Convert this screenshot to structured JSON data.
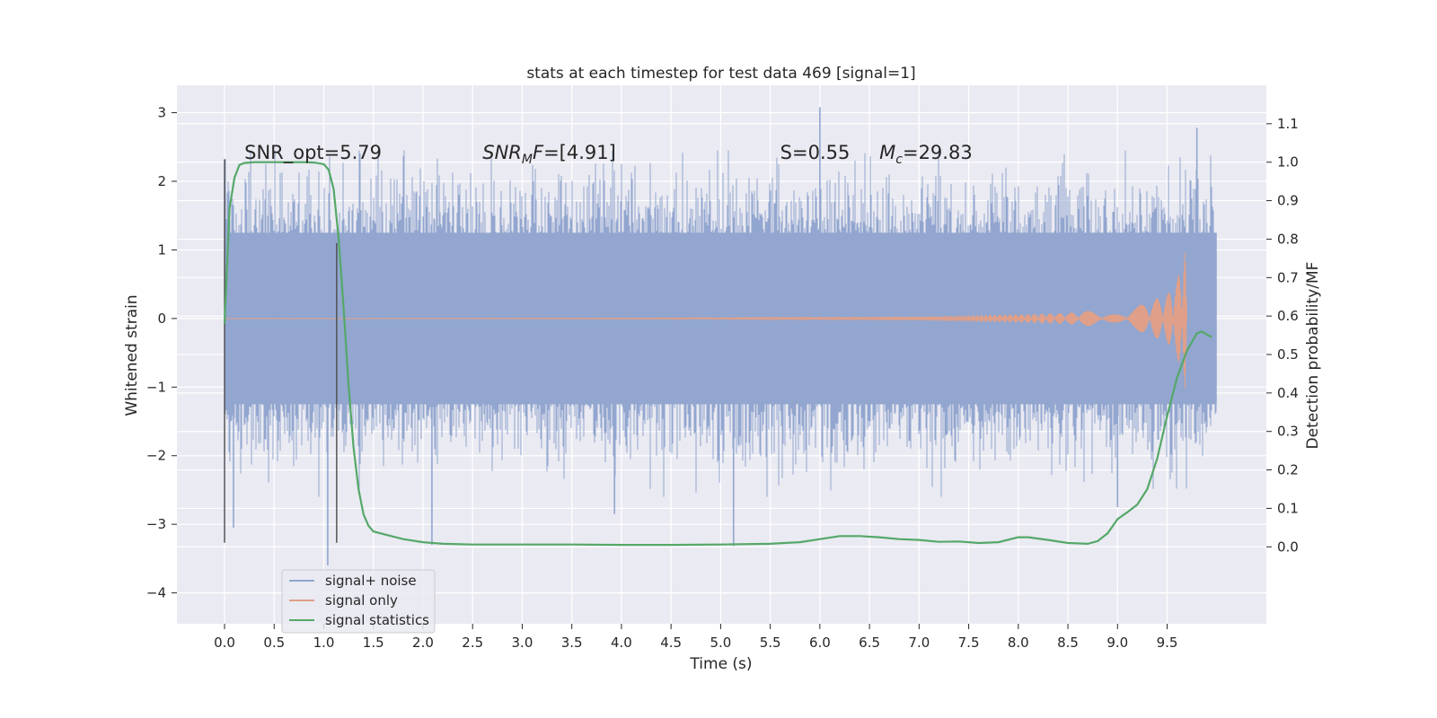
{
  "chart_data": {
    "type": "line",
    "title": "stats at each timestep for test data 469 [signal=1]",
    "xlabel": "Time (s)",
    "ylabel_left": "Whitened strain",
    "ylabel_right": "Detection probability/MF",
    "xlim": [
      -0.48,
      10.5
    ],
    "ylim_left": [
      -4.45,
      3.4
    ],
    "ylim_right": [
      -0.2,
      1.2
    ],
    "x_ticks": [
      0.0,
      0.5,
      1.0,
      1.5,
      2.0,
      2.5,
      3.0,
      3.5,
      4.0,
      4.5,
      5.0,
      5.5,
      6.0,
      6.5,
      7.0,
      7.5,
      8.0,
      8.5,
      9.0,
      9.5
    ],
    "x_tick_labels": [
      "0.0",
      "0.5",
      "1.0",
      "1.5",
      "2.0",
      "2.5",
      "3.0",
      "3.5",
      "4.0",
      "4.5",
      "5.0",
      "5.5",
      "6.0",
      "6.5",
      "7.0",
      "7.5",
      "8.0",
      "8.5",
      "9.0",
      "9.5"
    ],
    "y_ticks_left": [
      3,
      2,
      1,
      0,
      -1,
      -2,
      -3,
      -4
    ],
    "y_tick_labels_left": [
      "3",
      "2",
      "1",
      "0",
      "−1",
      "−2",
      "−3",
      "−4"
    ],
    "y_ticks_right": [
      1.1,
      1.0,
      0.9,
      0.8,
      0.7,
      0.6,
      0.5,
      0.4,
      0.3,
      0.2,
      0.1,
      0.0
    ],
    "y_tick_labels_right": [
      "1.1",
      "1.0",
      "0.9",
      "0.8",
      "0.7",
      "0.6",
      "0.5",
      "0.4",
      "0.3",
      "0.2",
      "0.1",
      "0.0"
    ],
    "grid": true,
    "legend": {
      "placement": "lower-left",
      "entries": [
        "signal+ noise",
        "signal only",
        "signal statistics"
      ]
    },
    "annotations": [
      {
        "label": "SNR_opt=5.79",
        "t": 0.2,
        "value": 2.33
      },
      {
        "label": "SNR_MF=[4.91]",
        "t": 2.6,
        "value": 2.33
      },
      {
        "label": "S=0.55",
        "t": 5.6,
        "value": 2.33
      },
      {
        "label": "M_c=29.83",
        "t": 6.6,
        "value": 2.33
      }
    ],
    "markers": [
      {
        "t": 0.0,
        "y_low": -3.27,
        "y_high": 2.32
      },
      {
        "t": 1.13,
        "y_low": -3.27,
        "y_high": 1.1
      }
    ],
    "series": [
      {
        "name": "signal+ noise",
        "color": "#92a6cf",
        "description_free": true,
        "t_range": [
          0.0,
          10.0
        ],
        "band_typical": [
          -1.25,
          1.25
        ],
        "noise_seed": 469,
        "spikes": [
          {
            "t": 0.09,
            "value": -3.05
          },
          {
            "t": 1.04,
            "value": -3.6
          },
          {
            "t": 2.09,
            "value": -3.3
          },
          {
            "t": 3.93,
            "value": -2.85
          },
          {
            "t": 5.13,
            "value": -3.32
          },
          {
            "t": 6.0,
            "value": 3.08
          },
          {
            "t": 9.0,
            "value": -2.75
          },
          {
            "t": 9.8,
            "value": 2.78
          }
        ]
      },
      {
        "name": "signal only",
        "color": "#e09f88",
        "t_range": [
          0.0,
          9.7
        ],
        "envelope": [
          [
            0.0,
            0.0
          ],
          [
            5.0,
            0.01
          ],
          [
            7.0,
            0.03
          ],
          [
            8.5,
            0.08
          ],
          [
            9.2,
            0.18
          ],
          [
            9.5,
            0.35
          ],
          [
            9.6,
            0.55
          ],
          [
            9.68,
            1.15
          ],
          [
            9.7,
            0.0
          ]
        ]
      },
      {
        "name": "signal statistics",
        "color": "#55a868",
        "x": [
          0.0,
          0.05,
          0.1,
          0.15,
          0.2,
          0.3,
          0.4,
          0.5,
          0.6,
          0.7,
          0.8,
          0.9,
          1.0,
          1.05,
          1.1,
          1.15,
          1.2,
          1.25,
          1.3,
          1.35,
          1.4,
          1.45,
          1.5,
          1.6,
          1.8,
          2.0,
          2.2,
          2.5,
          3.0,
          3.5,
          4.0,
          4.5,
          5.0,
          5.5,
          5.8,
          6.0,
          6.2,
          6.4,
          6.6,
          6.8,
          7.0,
          7.2,
          7.4,
          7.6,
          7.8,
          8.0,
          8.1,
          8.3,
          8.5,
          8.7,
          8.8,
          8.9,
          9.0,
          9.1,
          9.2,
          9.3,
          9.4,
          9.5,
          9.6,
          9.7,
          9.8,
          9.85,
          9.9,
          9.95
        ],
        "values": [
          0.58,
          0.88,
          0.96,
          0.993,
          0.998,
          1.0,
          1.0,
          1.0,
          1.0,
          1.0,
          1.0,
          0.999,
          0.995,
          0.98,
          0.93,
          0.8,
          0.62,
          0.42,
          0.26,
          0.15,
          0.085,
          0.055,
          0.04,
          0.033,
          0.02,
          0.012,
          0.008,
          0.006,
          0.006,
          0.006,
          0.005,
          0.005,
          0.006,
          0.008,
          0.012,
          0.02,
          0.028,
          0.028,
          0.025,
          0.02,
          0.018,
          0.013,
          0.014,
          0.01,
          0.012,
          0.025,
          0.025,
          0.018,
          0.01,
          0.008,
          0.015,
          0.035,
          0.072,
          0.09,
          0.11,
          0.15,
          0.23,
          0.34,
          0.44,
          0.51,
          0.555,
          0.56,
          0.552,
          0.545
        ]
      }
    ]
  }
}
